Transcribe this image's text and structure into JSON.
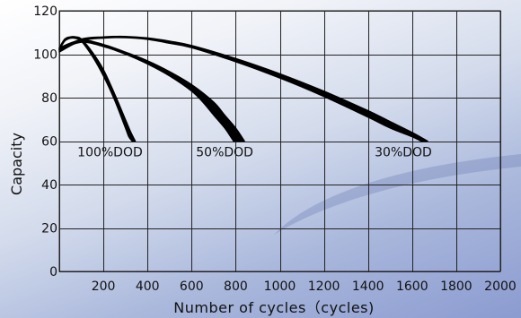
{
  "chart_data": {
    "type": "line",
    "title": "",
    "xlabel": "Number of cycles（cycles)",
    "ylabel": "Capacity",
    "xlim": [
      0,
      2000
    ],
    "ylim": [
      0,
      120
    ],
    "xticks": [
      0,
      200,
      400,
      600,
      800,
      1000,
      1200,
      1400,
      1600,
      1800,
      2000
    ],
    "xtick_labels": [
      "",
      "200",
      "400",
      "600",
      "800",
      "1000",
      "1200",
      "1400",
      "1600",
      "1800",
      "2000"
    ],
    "yticks": [
      0,
      20,
      40,
      60,
      80,
      100,
      120
    ],
    "ytick_labels": [
      "0",
      "20",
      "40",
      "60",
      "80",
      "100",
      "120"
    ],
    "grid": true,
    "series": [
      {
        "name": "100%DOD",
        "label_at": [
          230,
          55
        ],
        "color": "#000000",
        "upper": [
          [
            0,
            103
          ],
          [
            25,
            107
          ],
          [
            50,
            108
          ],
          [
            75,
            108
          ],
          [
            100,
            107
          ],
          [
            150,
            101
          ],
          [
            200,
            93
          ],
          [
            250,
            82
          ],
          [
            300,
            70
          ],
          [
            325,
            64
          ],
          [
            345,
            60
          ]
        ],
        "lower": [
          [
            0,
            102
          ],
          [
            25,
            106
          ],
          [
            50,
            107.3
          ],
          [
            75,
            107.2
          ],
          [
            100,
            106
          ],
          [
            150,
            99
          ],
          [
            200,
            90
          ],
          [
            250,
            79
          ],
          [
            300,
            66
          ],
          [
            315,
            62
          ],
          [
            330,
            60
          ]
        ]
      },
      {
        "name": "50%DOD",
        "label_at": [
          750,
          55
        ],
        "color": "#000000",
        "upper": [
          [
            0,
            103
          ],
          [
            100,
            106.5
          ],
          [
            200,
            104.5
          ],
          [
            300,
            101
          ],
          [
            400,
            97
          ],
          [
            500,
            92
          ],
          [
            600,
            86
          ],
          [
            700,
            78
          ],
          [
            750,
            72
          ],
          [
            800,
            66
          ],
          [
            840,
            60
          ]
        ],
        "lower": [
          [
            0,
            102
          ],
          [
            100,
            105.5
          ],
          [
            200,
            103.5
          ],
          [
            300,
            100
          ],
          [
            400,
            95.5
          ],
          [
            500,
            90
          ],
          [
            600,
            83
          ],
          [
            650,
            78
          ],
          [
            700,
            72
          ],
          [
            750,
            66
          ],
          [
            790,
            60
          ]
        ]
      },
      {
        "name": "30%DOD",
        "label_at": [
          1560,
          55
        ],
        "color": "#000000",
        "upper": [
          [
            0,
            102
          ],
          [
            100,
            107
          ],
          [
            200,
            108
          ],
          [
            300,
            108.2
          ],
          [
            400,
            107.5
          ],
          [
            500,
            106
          ],
          [
            600,
            104
          ],
          [
            800,
            98
          ],
          [
            1000,
            91
          ],
          [
            1200,
            83
          ],
          [
            1400,
            74
          ],
          [
            1500,
            69
          ],
          [
            1600,
            64
          ],
          [
            1670,
            60
          ]
        ],
        "lower": [
          [
            0,
            101
          ],
          [
            100,
            106.2
          ],
          [
            200,
            107.4
          ],
          [
            300,
            107.6
          ],
          [
            400,
            106.8
          ],
          [
            500,
            105
          ],
          [
            600,
            103
          ],
          [
            800,
            96.5
          ],
          [
            1000,
            89
          ],
          [
            1200,
            80.5
          ],
          [
            1400,
            71
          ],
          [
            1500,
            66
          ],
          [
            1600,
            62
          ],
          [
            1640,
            60
          ]
        ]
      }
    ]
  }
}
